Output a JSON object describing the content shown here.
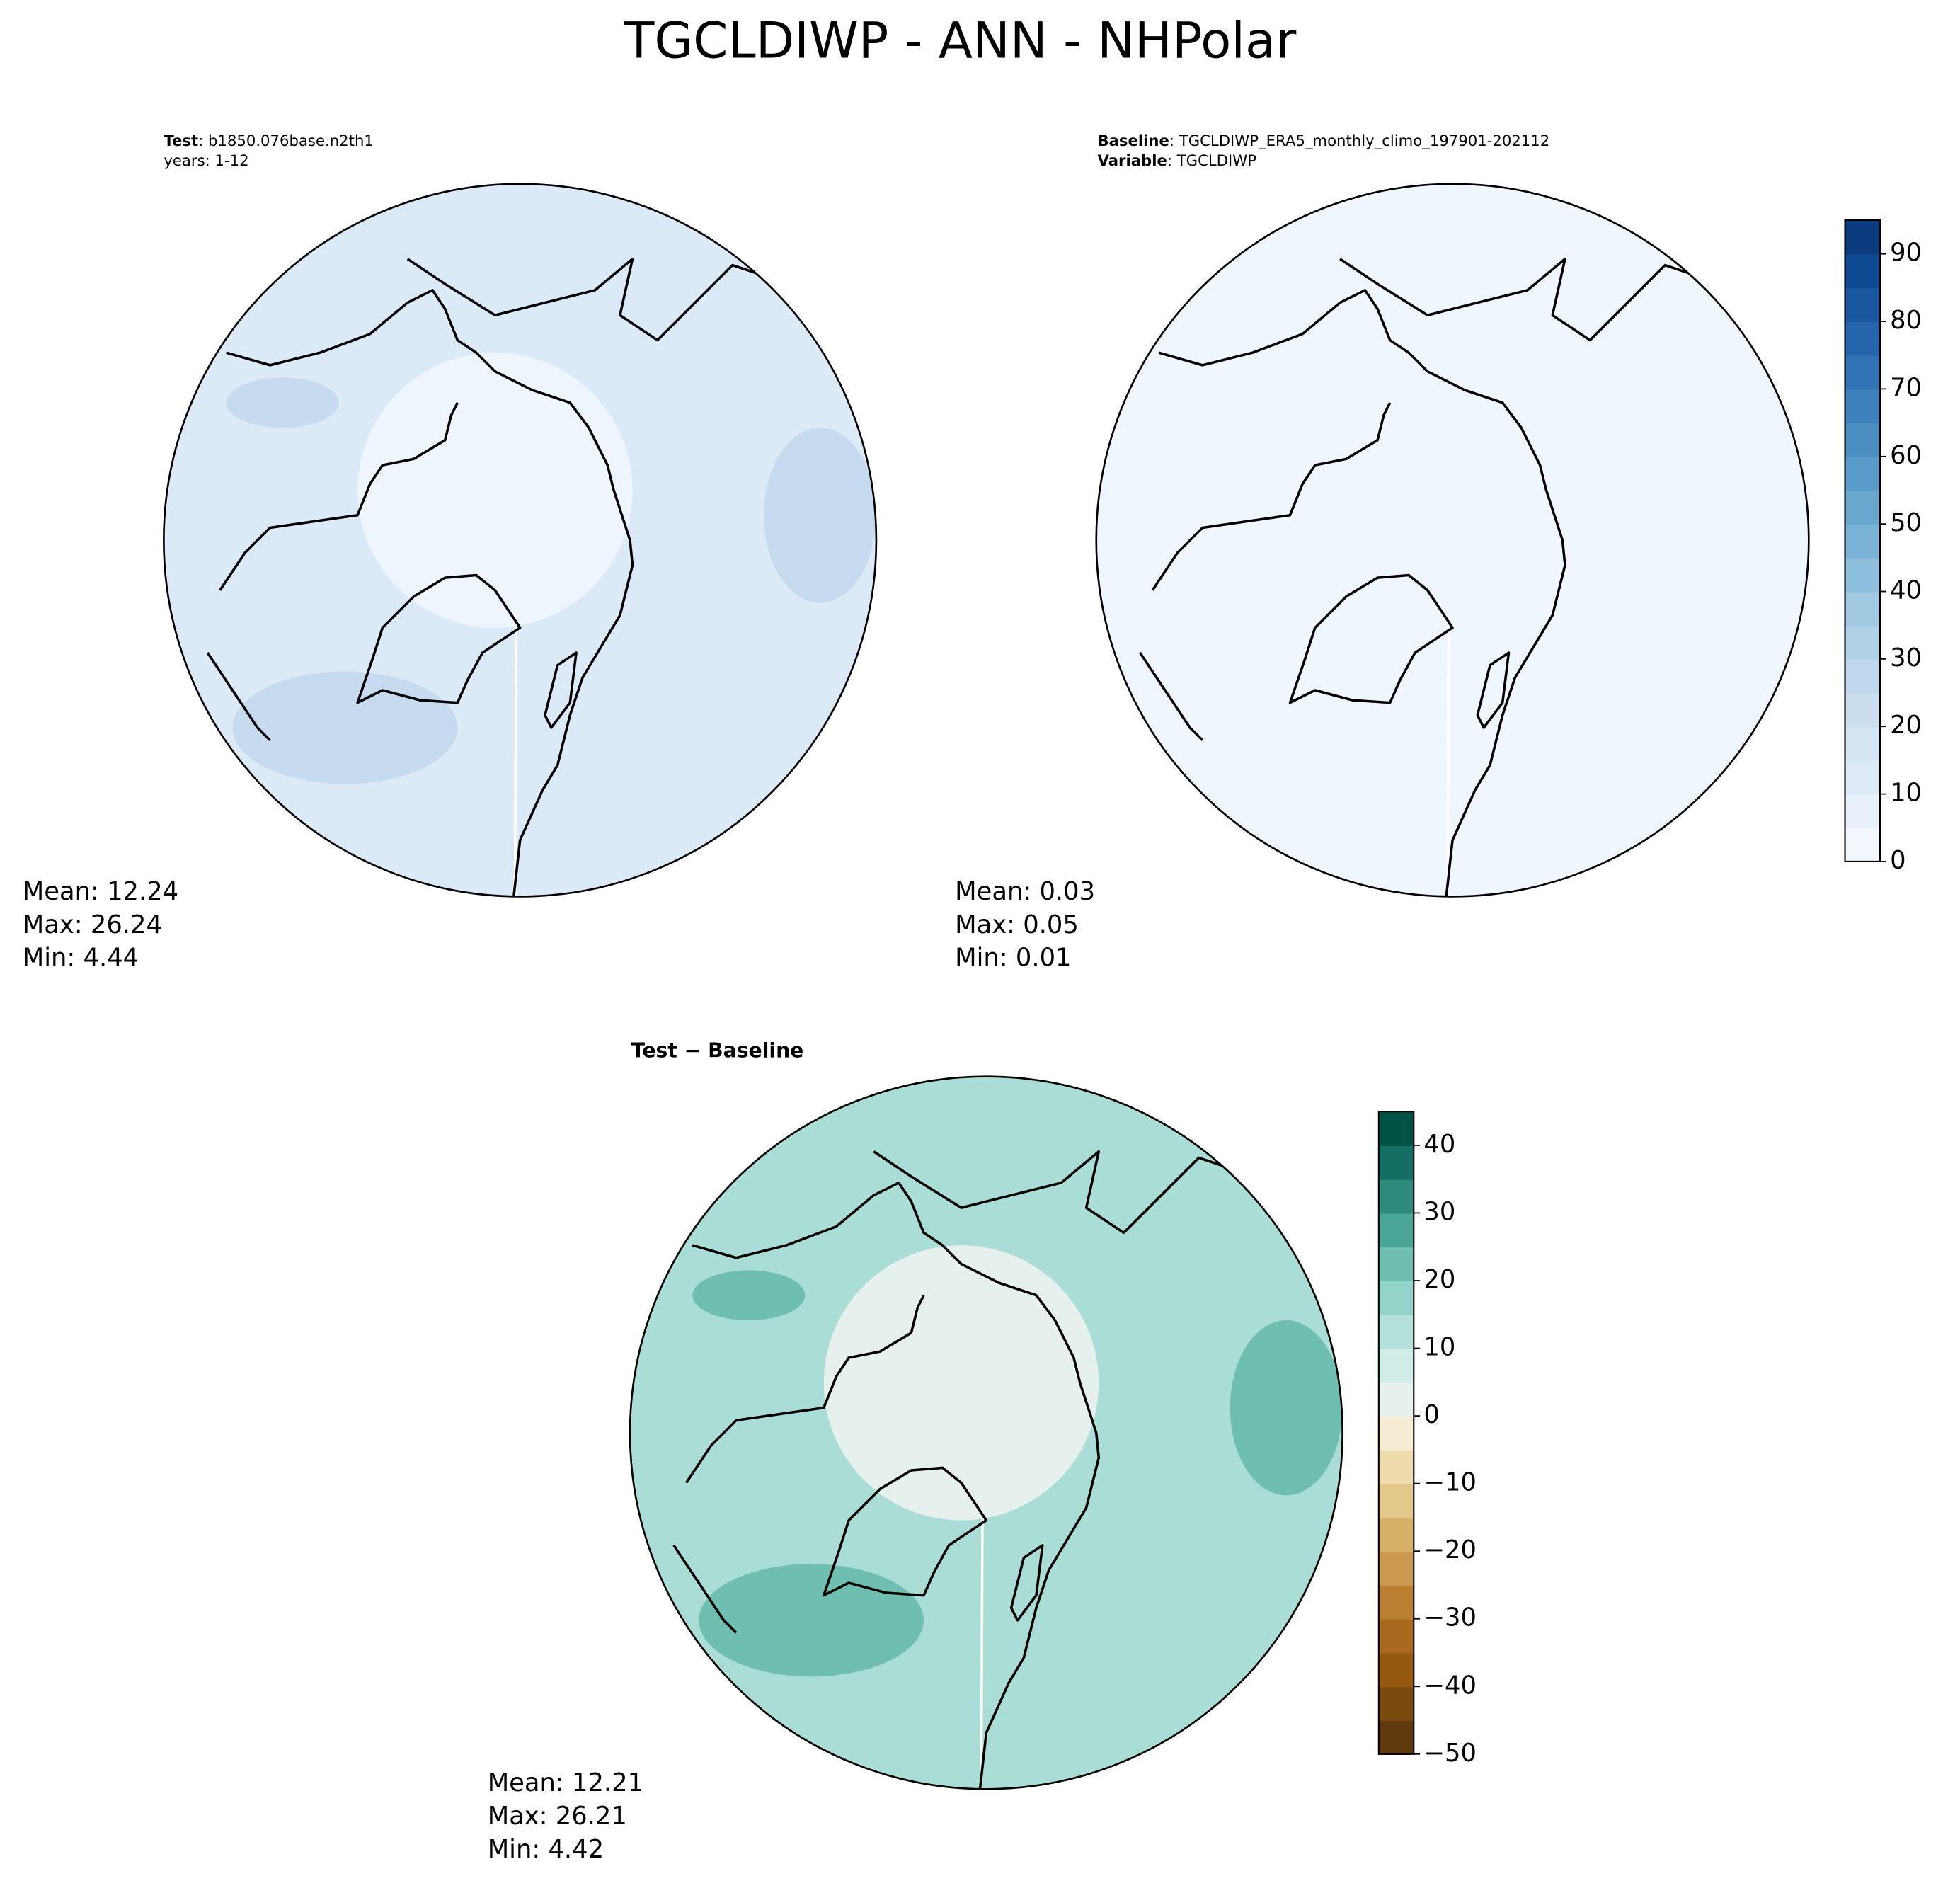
{
  "title": "TGCLDIWP - ANN - NHPolar",
  "panels": [
    {
      "heading_bold": "Test",
      "heading_text": ": b1850.076base.n2th1",
      "subheading": "years: 1-12",
      "stats": [
        "Mean: 12.24",
        "Max: 26.24",
        "Min:  4.44"
      ],
      "base_color": "#dce9f6",
      "center_color": "#eef5fc",
      "blob_color": "#c6dbef"
    },
    {
      "heading_bold": "Baseline",
      "heading_text": ": TGCLDIWP_ERA5_monthly_climo_197901-202112",
      "subheading_bold": "Variable",
      "subheading": ": TGCLDIWP",
      "stats": [
        "Mean:  0.03",
        "Max:  0.05",
        "Min:  0.01"
      ],
      "base_color": "#f0f6fd",
      "center_color": "#f0f6fd",
      "blob_color": "#f0f6fd"
    },
    {
      "heading_bold": "Test − Baseline",
      "stats": [
        "Mean: 12.21",
        "Max: 26.21",
        "Min:  4.42"
      ],
      "base_color": "#aaddd5",
      "center_color": "#e6f0ee",
      "blob_color": "#6fbfb0"
    }
  ],
  "colorbars": [
    {
      "lim": [
        0,
        95
      ],
      "ticks": [
        0,
        10,
        20,
        30,
        40,
        50,
        60,
        70,
        80,
        90
      ],
      "colors": [
        "#f2f7fd",
        "#e8f1fa",
        "#deebf7",
        "#d4e5f4",
        "#cadef0",
        "#bfd8ed",
        "#b0d2e7",
        "#a0cae1",
        "#8ebfdd",
        "#7bb3d8",
        "#69a7cf",
        "#5a9cc9",
        "#4b8fc2",
        "#3d82bc",
        "#3174b5",
        "#2565ab",
        "#19579f",
        "#0d4a91",
        "#0a3b7e"
      ]
    },
    {
      "lim": [
        -50,
        45
      ],
      "ticks": [
        {
          "value": -50,
          "label": "−50"
        },
        {
          "value": -40,
          "label": "−40"
        },
        {
          "value": -30,
          "label": "−30"
        },
        {
          "value": -20,
          "label": "−20"
        },
        {
          "value": -10,
          "label": "−10"
        },
        0,
        10,
        20,
        30,
        40
      ],
      "colors": [
        "#5e3a0c",
        "#7b4b0d",
        "#95580f",
        "#a8681d",
        "#bb7f32",
        "#cb984d",
        "#d8b168",
        "#e5c88c",
        "#efdcae",
        "#f5ecd4",
        "#e6f0ee",
        "#d0ece7",
        "#b4e2da",
        "#93d4c8",
        "#6fbfb0",
        "#4aa596",
        "#2d8b7c",
        "#146e63",
        "#005245"
      ]
    }
  ]
}
